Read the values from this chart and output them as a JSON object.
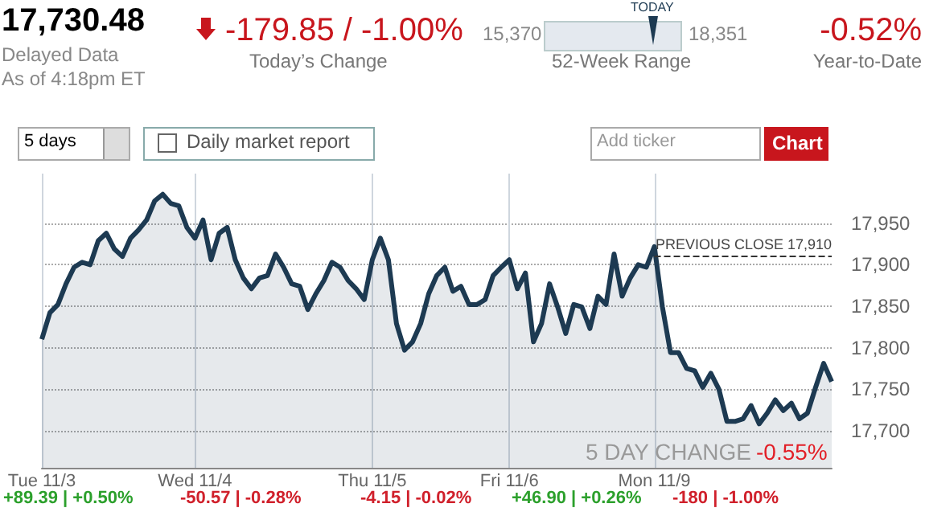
{
  "chart_data": {
    "type": "area",
    "categories": [
      "Tue 11/3",
      null,
      null,
      null,
      null,
      null,
      null,
      null,
      null,
      null,
      null,
      null,
      null,
      null,
      null,
      null,
      null,
      null,
      null,
      "Wed 11/4",
      null,
      null,
      null,
      null,
      null,
      null,
      null,
      null,
      null,
      null,
      null,
      null,
      null,
      null,
      null,
      null,
      null,
      null,
      null,
      null,
      null,
      "Thu 11/5",
      null,
      null,
      null,
      null,
      null,
      null,
      null,
      null,
      null,
      null,
      null,
      null,
      null,
      null,
      null,
      null,
      "Fri 11/6",
      null,
      null,
      null,
      null,
      null,
      null,
      null,
      null,
      null,
      null,
      null,
      null,
      null,
      null,
      null,
      null,
      null,
      "Mon 11/9",
      null,
      null,
      null,
      null,
      null,
      null,
      null,
      null,
      null,
      null,
      null,
      null,
      null,
      null,
      null,
      null,
      null,
      null,
      null,
      null,
      null,
      null
    ],
    "series": [
      {
        "color": "#1d3a52",
        "values": [
          17810,
          17842,
          17852,
          17877,
          17897,
          17903,
          17900,
          17929,
          17938,
          17919,
          17910,
          17932,
          17942,
          17954,
          17977,
          17985,
          17974,
          17971,
          17945,
          17932,
          17954,
          17906,
          17938,
          17945,
          17906,
          17884,
          17871,
          17884,
          17887,
          17913,
          17897,
          17877,
          17874,
          17846,
          17865,
          17881,
          17903,
          17897,
          17881,
          17871,
          17858,
          17906,
          17932,
          17906,
          17829,
          17797,
          17807,
          17829,
          17865,
          17887,
          17897,
          17868,
          17874,
          17852,
          17852,
          17858,
          17887,
          17897,
          17906,
          17871,
          17890,
          17807,
          17829,
          17877,
          17849,
          17817,
          17852,
          17849,
          17823,
          17862,
          17852,
          17913,
          17862,
          17884,
          17900,
          17897,
          17922,
          17849,
          17794,
          17794,
          17775,
          17772,
          17752,
          17769,
          17750,
          17711,
          17711,
          17714,
          17730,
          17708,
          17721,
          17737,
          17724,
          17733,
          17714,
          17721,
          17752,
          17781,
          17759
        ]
      }
    ],
    "ylim": [
      17655,
      18010
    ],
    "yticks": [
      {
        "value": 17700,
        "label": "17,700"
      },
      {
        "value": 17750,
        "label": "17,750"
      },
      {
        "value": 17800,
        "label": "17,800"
      },
      {
        "value": 17850,
        "label": "17,850"
      },
      {
        "value": 17900,
        "label": "17,900"
      },
      {
        "value": 17950,
        "label": "17,950"
      }
    ],
    "grid": true,
    "marker": "none",
    "line_style": "solid",
    "ref_lines": [
      {
        "axis": "y",
        "value": 17910,
        "label": "PREVIOUS CLOSE 17,910",
        "color": "#333333",
        "line_style": "dashed"
      }
    ],
    "annotations": [
      "17,730.48",
      "Delayed Data",
      "As of 4:18pm ET",
      "-179.85 / -1.00%",
      "Today’s Change",
      "15,370",
      "TODAY",
      "18,351",
      "52-Week Range",
      "-0.52%",
      "Year-to-Date",
      "5 days",
      "Daily market report",
      "Add ticker",
      "Chart",
      "5 DAY CHANGE",
      "-0.55%",
      "+89.39 | +0.50%",
      "-50.57 | -0.28%",
      "-4.15 | -0.02%",
      "+46.90 | +0.26%",
      "-180 | -1.00%"
    ]
  }
}
